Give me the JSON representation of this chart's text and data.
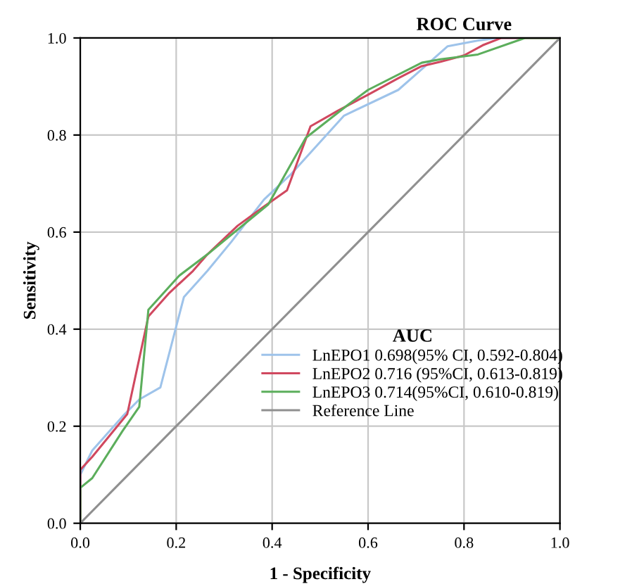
{
  "chart_data": {
    "type": "line",
    "title": "ROC Curve",
    "xlabel": "1 - Specificity",
    "ylabel": "Sensitivity",
    "legend_title": "AUC",
    "legend": "bottom right",
    "grid": true,
    "marker": "none",
    "line_style": "solid",
    "xlim": [
      0,
      1
    ],
    "ylim": [
      0,
      1
    ],
    "xticks": [
      {
        "value": 0,
        "label": "0.0"
      },
      0.2,
      0.4,
      0.6,
      0.8,
      {
        "value": 1,
        "label": "1.0"
      }
    ],
    "yticks": [
      {
        "value": 0,
        "label": "0.0"
      },
      0.2,
      0.4,
      0.6,
      0.8,
      {
        "value": 1,
        "label": "1.0"
      }
    ],
    "series": [
      {
        "name": "LnEPO1 0.698(95% CI, 0.592-0.804)",
        "color": "#9ec3ea",
        "x": [
          0,
          0,
          0.025,
          0.088,
          0.123,
          0.167,
          0.216,
          0.265,
          0.315,
          0.383,
          0.44,
          0.55,
          0.663,
          0.702,
          0.766,
          0.83,
          0.87,
          1
        ],
        "values": [
          0,
          0.1,
          0.15,
          0.22,
          0.255,
          0.28,
          0.466,
          0.52,
          0.58,
          0.667,
          0.72,
          0.84,
          0.893,
          0.927,
          0.983,
          0.995,
          1,
          1
        ]
      },
      {
        "name": "LnEPO2 0.716 (95%CI, 0.613-0.819)",
        "color": "#d0485f",
        "x": [
          0,
          0,
          0.025,
          0.098,
          0.142,
          0.186,
          0.235,
          0.265,
          0.328,
          0.382,
          0.431,
          0.48,
          0.537,
          0.6,
          0.663,
          0.712,
          0.751,
          0.8,
          0.839,
          0.878,
          1
        ],
        "values": [
          0,
          0.11,
          0.137,
          0.225,
          0.426,
          0.475,
          0.52,
          0.554,
          0.613,
          0.652,
          0.686,
          0.818,
          0.85,
          0.883,
          0.917,
          0.942,
          0.951,
          0.964,
          0.985,
          1,
          1
        ]
      },
      {
        "name": "LnEPO3 0.714(95%CI, 0.610-0.819)",
        "color": "#5cae5c",
        "x": [
          0,
          0,
          0.025,
          0.088,
          0.123,
          0.142,
          0.206,
          0.265,
          0.392,
          0.47,
          0.559,
          0.6,
          0.712,
          0.751,
          0.829,
          0.927,
          1
        ],
        "values": [
          0,
          0.073,
          0.093,
          0.19,
          0.24,
          0.44,
          0.51,
          0.554,
          0.657,
          0.794,
          0.863,
          0.893,
          0.949,
          0.956,
          0.966,
          1,
          1
        ]
      },
      {
        "name": "Reference Line",
        "color": "#909090",
        "x": [
          0,
          1
        ],
        "values": [
          0,
          1
        ]
      }
    ]
  }
}
